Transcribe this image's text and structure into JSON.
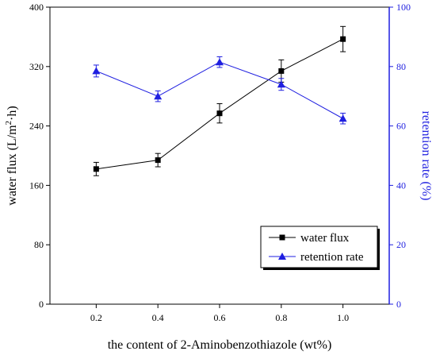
{
  "chart_data": {
    "type": "line",
    "x": [
      0.2,
      0.4,
      0.6,
      0.8,
      1.0
    ],
    "x_ticks": [
      "0.2",
      "0.4",
      "0.6",
      "0.8",
      "1.0"
    ],
    "xlim": [
      0.05,
      1.15
    ],
    "xlabel": "the content of 2-Aminobenzothiazole (wt%)",
    "ylabel_left_parts": {
      "a": "water flux (L/m",
      "sup": "2",
      "b": "·h)"
    },
    "ylim_left": [
      0,
      400
    ],
    "yticks_left": [
      0,
      80,
      160,
      240,
      320,
      400
    ],
    "ylabel_right": "retention rate (%)",
    "ylim_right": [
      0,
      100
    ],
    "yticks_right": [
      0,
      20,
      40,
      60,
      80,
      100
    ],
    "series": [
      {
        "name": "water flux",
        "axis": "left",
        "color": "#000000",
        "marker": "square",
        "values": [
          182,
          194,
          257,
          314,
          357
        ],
        "errors": [
          9,
          9,
          13,
          15,
          17
        ]
      },
      {
        "name": "retention rate",
        "axis": "right",
        "color": "#1f1fe0",
        "marker": "triangle",
        "values": [
          78.5,
          70.0,
          81.5,
          74.0,
          62.5
        ],
        "errors": [
          2.0,
          1.8,
          1.8,
          2.0,
          1.8
        ]
      }
    ],
    "legend_position": "bottom-right",
    "grid": false
  }
}
